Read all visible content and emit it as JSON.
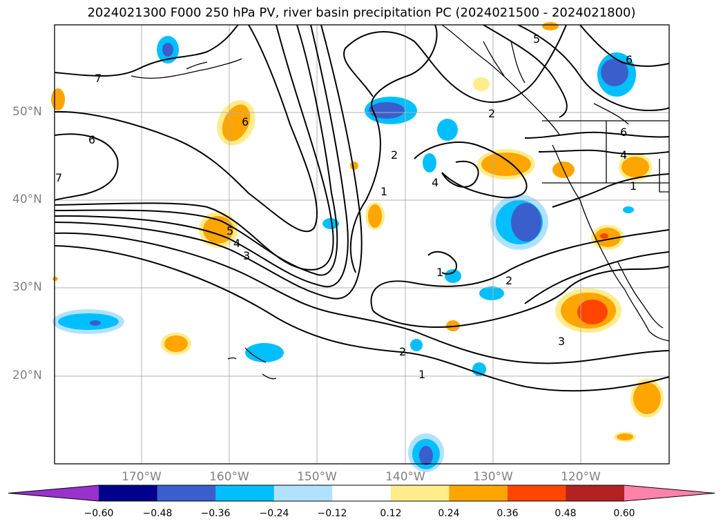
{
  "title": "2024021300 F000 250 hPa PV, river basin precipitation PC (2024021500 - 2024021800)",
  "map": {
    "lat_labels": [
      "50°N",
      "40°N",
      "30°N",
      "20°N"
    ],
    "lon_labels": [
      "170°W",
      "160°W",
      "150°W",
      "140°W",
      "130°W",
      "120°W"
    ],
    "contour_labels": [
      "7",
      "6",
      "7",
      "6",
      "5",
      "4",
      "3",
      "2",
      "1",
      "4",
      "1",
      "2",
      "2",
      "1",
      "3",
      "5",
      "6",
      "6",
      "4",
      "1"
    ]
  },
  "colorbar": {
    "ticks": [
      "−0.60",
      "−0.48",
      "−0.36",
      "−0.24",
      "−0.12",
      "0.12",
      "0.24",
      "0.36",
      "0.48",
      "0.60"
    ],
    "colors": [
      "#9932cc",
      "#00008b",
      "#3a5fcd",
      "#00bfff",
      "#b0e2ff",
      "#ffffff",
      "#ffec8b",
      "#ffa500",
      "#ff4500",
      "#b22222",
      "#ff82ab"
    ]
  }
}
